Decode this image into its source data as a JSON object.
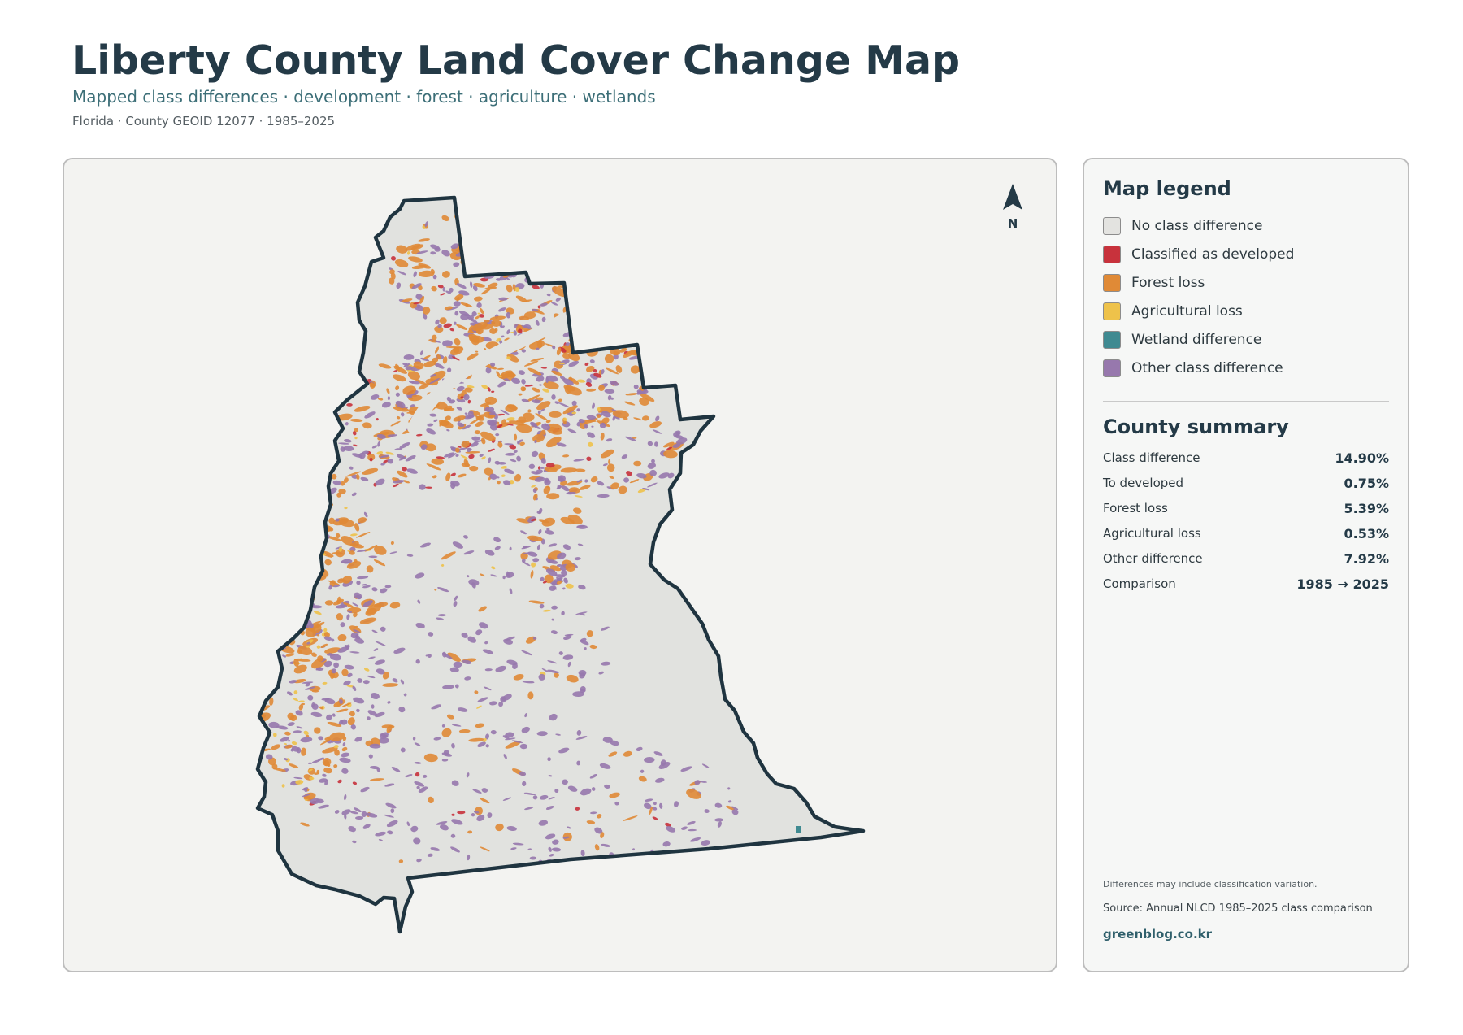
{
  "header": {
    "title": "Liberty County Land Cover Change Map",
    "subtitle": "Mapped class differences · development · forest · agriculture · wetlands",
    "meta": "Florida · County GEOID 12077 · 1985–2025"
  },
  "map": {
    "north_label": "N",
    "boundary_color": "#1f3440",
    "fill_color": "#e1e2df",
    "features": [
      {
        "class": "forest",
        "color": "#e08a36"
      },
      {
        "class": "other",
        "color": "#9778ad"
      },
      {
        "class": "developed",
        "color": "#c8323c"
      },
      {
        "class": "agricultural",
        "color": "#eec24a"
      },
      {
        "class": "wetland",
        "color": "#3f8a91"
      }
    ]
  },
  "legend": {
    "title": "Map legend",
    "items": [
      {
        "label": "No class difference",
        "color": "#e3e3e0"
      },
      {
        "label": "Classified as developed",
        "color": "#c8323c"
      },
      {
        "label": "Forest loss",
        "color": "#e08a36"
      },
      {
        "label": "Agricultural loss",
        "color": "#eec24a"
      },
      {
        "label": "Wetland difference",
        "color": "#3f8a91"
      },
      {
        "label": "Other class difference",
        "color": "#9778ad"
      }
    ]
  },
  "summary": {
    "title": "County summary",
    "rows": [
      {
        "label": "Class difference",
        "value": "14.90%"
      },
      {
        "label": "To developed",
        "value": "0.75%"
      },
      {
        "label": "Forest loss",
        "value": "5.39%"
      },
      {
        "label": "Agricultural loss",
        "value": "0.53%"
      },
      {
        "label": "Other difference",
        "value": "7.92%"
      },
      {
        "label": "Comparison",
        "value": "1985 → 2025"
      }
    ]
  },
  "footer": {
    "note": "Differences may include classification variation.",
    "source": "Source: Annual NLCD 1985–2025 class comparison",
    "site": "greenblog.co.kr"
  }
}
